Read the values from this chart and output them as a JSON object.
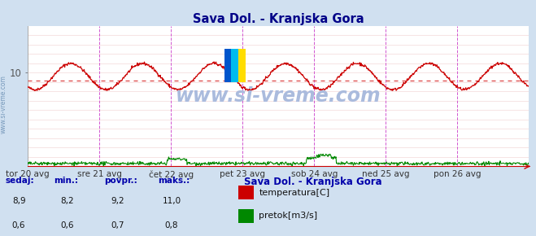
{
  "title": "Sava Dol. - Kranjska Gora",
  "bg_color": "#d0e0f0",
  "plot_bg_color": "#ffffff",
  "grid_color": "#f0d0d0",
  "x_labels": [
    "tor 20 avg",
    "sre 21 avg",
    "čet 22 avg",
    "pet 23 avg",
    "sob 24 avg",
    "ned 25 avg",
    "pon 26 avg"
  ],
  "n_points": 1008,
  "temp_color": "#cc0000",
  "flow_color": "#008800",
  "avg_line_color": "#dd4444",
  "vline_color": "#cc44cc",
  "watermark_color": "#aabbdd",
  "title_color": "#000088",
  "label_color": "#0000aa",
  "ymin": 0,
  "ymax": 15,
  "temp_display_min": 8.2,
  "temp_display_max": 11.0,
  "temp_avg": 9.2,
  "flow_display_min": 0.6,
  "flow_display_max": 0.8,
  "legend_title": "Sava Dol. - Kranjska Gora",
  "legend_items": [
    {
      "label": "temperatura[C]",
      "color": "#cc0000"
    },
    {
      "label": "pretok[m3/s]",
      "color": "#008800"
    }
  ],
  "table_headers": [
    "sedaj:",
    "min.:",
    "povpr.:",
    "maks.:"
  ],
  "table_row1": [
    "8,9",
    "8,2",
    "9,2",
    "11,0"
  ],
  "table_row2": [
    "0,6",
    "0,6",
    "0,7",
    "0,8"
  ]
}
